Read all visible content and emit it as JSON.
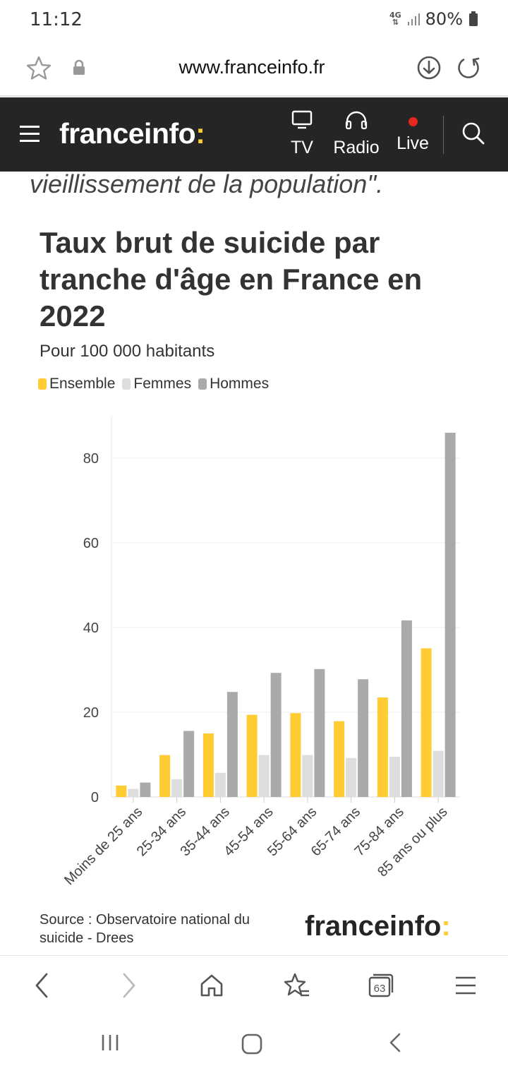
{
  "status_bar": {
    "time": "11:12",
    "network": "4G",
    "battery": "80%"
  },
  "address_bar": {
    "url": "www.franceinfo.fr"
  },
  "site_header": {
    "logo": "franceinfo",
    "logo_accent": ":",
    "nav": [
      {
        "label": "TV",
        "icon": "tv-icon"
      },
      {
        "label": "Radio",
        "icon": "headphones-icon"
      },
      {
        "label": "Live",
        "icon": "live-dot-icon"
      }
    ]
  },
  "article": {
    "intro_quote": "vieillissement de la population\"."
  },
  "chart_data": {
    "type": "bar",
    "title": "Taux brut de suicide par tranche d'âge en France en 2022",
    "subtitle": "Pour 100 000 habitants",
    "categories": [
      "Moins de 25 ans",
      "25-34 ans",
      "35-44 ans",
      "45-54 ans",
      "55-64 ans",
      "65-74 ans",
      "75-84 ans",
      "85 ans ou plus"
    ],
    "series": [
      {
        "name": "Ensemble",
        "color": "#ffcc33",
        "values": [
          2.7,
          9.9,
          15.0,
          19.4,
          19.8,
          17.9,
          23.5,
          35.1
        ]
      },
      {
        "name": "Femmes",
        "color": "#dddddd",
        "values": [
          1.9,
          4.2,
          5.7,
          9.9,
          9.9,
          9.2,
          9.5,
          10.9
        ]
      },
      {
        "name": "Hommes",
        "color": "#aaaaaa",
        "values": [
          3.4,
          15.6,
          24.8,
          29.3,
          30.2,
          27.8,
          41.7,
          86.0
        ]
      }
    ],
    "y_ticks": [
      "0",
      "20",
      "40",
      "60",
      "80"
    ],
    "ylim": [
      0,
      90
    ],
    "grid": true,
    "legend": "top-left",
    "source": "Source : Observatoire national du suicide - Drees",
    "source_logo": "franceinfo",
    "source_logo_accent": ":"
  },
  "browser_bar": {
    "tab_count": "63",
    "buttons": [
      "back-icon",
      "forward-icon",
      "home-icon",
      "bookmarks-icon",
      "tabs-icon",
      "menu-icon"
    ]
  },
  "system_nav": [
    "recents-icon",
    "home-icon",
    "back-icon"
  ]
}
